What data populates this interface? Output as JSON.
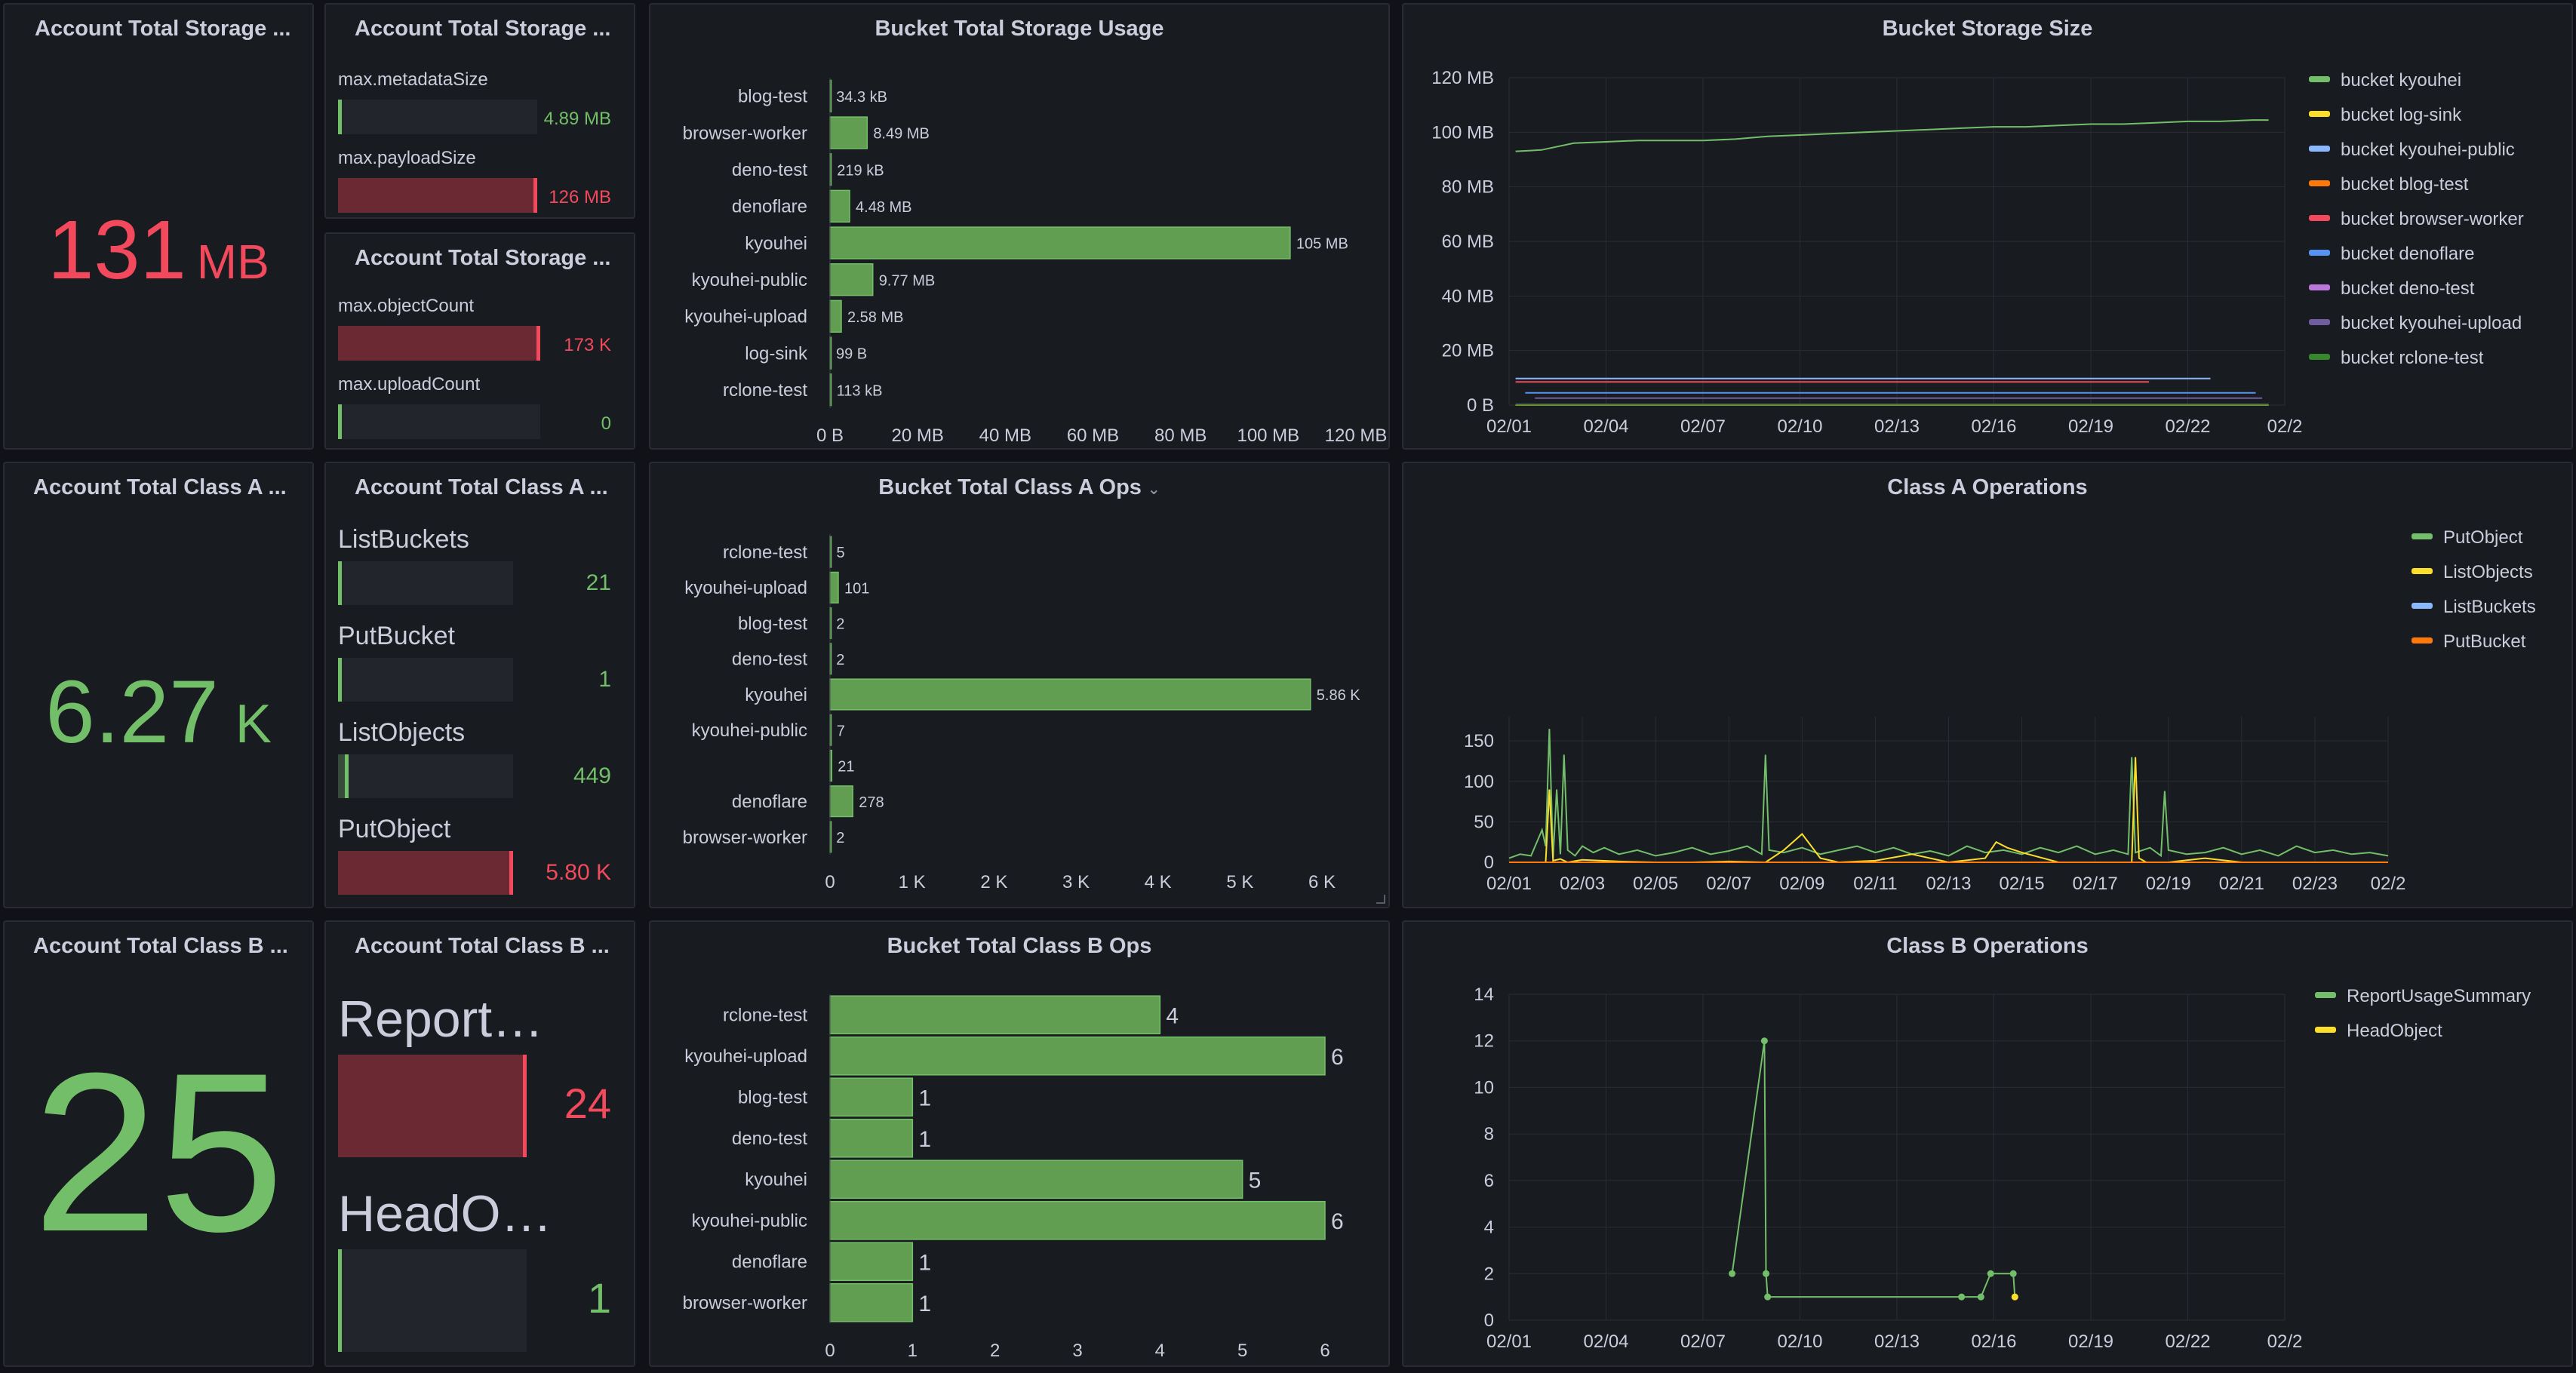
{
  "colors": {
    "green": "#73bf69",
    "red": "#f2495c",
    "bar_green": "#629e51",
    "bar_red": "#6b2a33",
    "bg": "#181b1f",
    "grid": "#2a2c33",
    "text": "#ccccdc"
  },
  "storage": {
    "stat_title": "Account Total Storage ...",
    "stat_value": "131",
    "stat_unit": "MB",
    "gauge1_title": "Account Total Storage ...",
    "gauge1": [
      {
        "label": "max.metadataSize",
        "value": "4.89 MB",
        "color": "green",
        "fraction": 0.0
      },
      {
        "label": "max.payloadSize",
        "value": "126 MB",
        "color": "red",
        "fraction": 1.0
      }
    ],
    "gauge2_title": "Account Total Storage ...",
    "gauge2": [
      {
        "label": "max.objectCount",
        "value": "173 K",
        "color": "red",
        "fraction": 1.0
      },
      {
        "label": "max.uploadCount",
        "value": "0",
        "color": "green",
        "fraction": 0.0
      }
    ]
  },
  "class_a": {
    "stat_title": "Account Total Class A ...",
    "stat_value": "6.27",
    "stat_unit": "K",
    "gauge_title": "Account Total Class A ...",
    "gauge": [
      {
        "label": "ListBuckets",
        "value": "21",
        "color": "green",
        "fraction": 0.0
      },
      {
        "label": "PutBucket",
        "value": "1",
        "color": "green",
        "fraction": 0.0
      },
      {
        "label": "ListObjects",
        "value": "449",
        "color": "green",
        "fraction": 0.06
      },
      {
        "label": "PutObject",
        "value": "5.80 K",
        "color": "red",
        "fraction": 1.0
      }
    ]
  },
  "class_b": {
    "stat_title": "Account Total Class B ...",
    "stat_value": "25",
    "gauge_title": "Account Total Class B ...",
    "gauge": [
      {
        "label": "ReportUs...",
        "value": "24",
        "color": "red",
        "fraction": 1.0
      },
      {
        "label": "HeadObje...",
        "value": "1",
        "color": "green",
        "fraction": 0.0
      }
    ]
  },
  "chart_data": [
    {
      "id": "bucket-storage-usage",
      "type": "bar",
      "orientation": "horizontal",
      "title": "Bucket Total Storage Usage",
      "categories": [
        "blog-test",
        "browser-worker",
        "deno-test",
        "denoflare",
        "kyouhei",
        "kyouhei-public",
        "kyouhei-upload",
        "log-sink",
        "rclone-test"
      ],
      "values": [
        0.0343,
        8.49,
        0.219,
        4.48,
        105,
        9.77,
        2.58,
        9.9e-05,
        0.113
      ],
      "value_labels": [
        "34.3 kB",
        "8.49 MB",
        "219 kB",
        "4.48 MB",
        "105 MB",
        "9.77 MB",
        "2.58 MB",
        "99 B",
        "113 kB"
      ],
      "xlim": [
        0,
        120
      ],
      "x_ticks": [
        0,
        20,
        40,
        60,
        80,
        100,
        120
      ],
      "x_tick_labels": [
        "0 B",
        "20 MB",
        "40 MB",
        "60 MB",
        "80 MB",
        "100 MB",
        "120 MB"
      ]
    },
    {
      "id": "bucket-storage-size",
      "type": "line",
      "title": "Bucket Storage Size",
      "x_tick_labels": [
        "02/01",
        "02/04",
        "02/07",
        "02/10",
        "02/13",
        "02/16",
        "02/19",
        "02/22",
        "02/2"
      ],
      "y_tick_labels": [
        "0 B",
        "20 MB",
        "40 MB",
        "60 MB",
        "80 MB",
        "100 MB",
        "120 MB"
      ],
      "ylim": [
        0,
        120
      ],
      "legend_position": "right",
      "series": [
        {
          "name": "bucket kyouhei",
          "color": "#73bf69",
          "x": [
            0.2,
            1,
            2,
            3,
            4,
            5,
            6,
            7,
            8,
            9,
            10,
            11,
            12,
            13,
            14,
            15,
            16,
            17,
            18,
            19,
            20,
            21,
            22,
            23,
            23.5
          ],
          "values": [
            93,
            93.5,
            96,
            96.5,
            97,
            97,
            97,
            97.5,
            98.5,
            99,
            99.5,
            100,
            100.5,
            101,
            101.5,
            102,
            102,
            102.5,
            103,
            103,
            103.5,
            104,
            104,
            104.5,
            104.5
          ]
        },
        {
          "name": "bucket log-sink",
          "color": "#fade2a",
          "x": [
            0.2,
            23.5
          ],
          "values": [
            0.0001,
            0.0001
          ]
        },
        {
          "name": "bucket kyouhei-public",
          "color": "#8ab8ff",
          "x": [
            0.2,
            21.7
          ],
          "values": [
            9.77,
            9.77
          ]
        },
        {
          "name": "bucket blog-test",
          "color": "#ff780a",
          "x": [
            0.2,
            23.5
          ],
          "values": [
            0.03,
            0.03
          ]
        },
        {
          "name": "bucket browser-worker",
          "color": "#f2495c",
          "x": [
            0.2,
            19.8
          ],
          "values": [
            8.49,
            8.49
          ]
        },
        {
          "name": "bucket denoflare",
          "color": "#5794f2",
          "x": [
            0.5,
            23.1
          ],
          "values": [
            4.48,
            4.48
          ]
        },
        {
          "name": "bucket deno-test",
          "color": "#b877d9",
          "x": [
            0.2,
            23.5
          ],
          "values": [
            0.219,
            0.219
          ]
        },
        {
          "name": "bucket kyouhei-upload",
          "color": "#705da0",
          "x": [
            0.8,
            23.3
          ],
          "values": [
            2.58,
            2.58
          ]
        },
        {
          "name": "bucket rclone-test",
          "color": "#37872d",
          "x": [
            0.2,
            23.5
          ],
          "values": [
            0.113,
            0.113
          ]
        }
      ]
    },
    {
      "id": "bucket-class-a-ops",
      "type": "bar",
      "orientation": "horizontal",
      "title": "Bucket Total Class A Ops",
      "categories": [
        "rclone-test",
        "kyouhei-upload",
        "blog-test",
        "deno-test",
        "kyouhei",
        "kyouhei-public",
        "",
        "denoflare",
        "browser-worker"
      ],
      "values": [
        5,
        101,
        2,
        2,
        5860,
        7,
        21,
        278,
        2
      ],
      "value_labels": [
        "5",
        "101",
        "2",
        "2",
        "5.86 K",
        "7",
        "21",
        "278",
        "2"
      ],
      "xlim": [
        0,
        6000
      ],
      "x_ticks": [
        0,
        1000,
        2000,
        3000,
        4000,
        5000,
        6000
      ],
      "x_tick_labels": [
        "0",
        "1 K",
        "2 K",
        "3 K",
        "4 K",
        "5 K",
        "6 K"
      ]
    },
    {
      "id": "class-a-operations",
      "type": "line",
      "title": "Class A Operations",
      "x_tick_labels": [
        "02/01",
        "02/03",
        "02/05",
        "02/07",
        "02/09",
        "02/11",
        "02/13",
        "02/15",
        "02/17",
        "02/19",
        "02/21",
        "02/23",
        "02/2"
      ],
      "y_tick_labels": [
        "0",
        "50",
        "100",
        "150"
      ],
      "ylim": [
        0,
        180
      ],
      "legend_position": "right",
      "series": [
        {
          "name": "PutObject",
          "color": "#73bf69",
          "x": [
            0,
            0.3,
            0.6,
            0.9,
            1.0,
            1.1,
            1.2,
            1.3,
            1.4,
            1.5,
            1.6,
            1.8,
            2.0,
            2.3,
            2.6,
            3,
            3.5,
            4,
            4.5,
            5,
            5.5,
            6,
            6.5,
            6.9,
            7.0,
            7.1,
            7.5,
            8,
            8.5,
            9,
            9.5,
            10,
            10.5,
            11,
            11.5,
            12,
            12.5,
            13,
            13.5,
            14,
            14.5,
            15,
            15.5,
            16,
            16.5,
            16.9,
            17.0,
            17.1,
            17.5,
            17.8,
            17.9,
            18.0,
            18.5,
            19,
            19.5,
            20,
            20.5,
            21,
            21.5,
            22,
            22.5,
            23,
            23.5,
            24
          ],
          "values": [
            5,
            10,
            8,
            40,
            20,
            165,
            5,
            90,
            10,
            133,
            15,
            8,
            20,
            12,
            18,
            10,
            15,
            8,
            12,
            18,
            10,
            14,
            20,
            10,
            133,
            15,
            12,
            18,
            10,
            15,
            20,
            12,
            18,
            10,
            14,
            8,
            20,
            12,
            15,
            10,
            18,
            12,
            20,
            10,
            15,
            10,
            130,
            12,
            18,
            8,
            88,
            15,
            10,
            12,
            18,
            10,
            15,
            8,
            20,
            12,
            15,
            10,
            12,
            8
          ]
        },
        {
          "name": "ListObjects",
          "color": "#fade2a",
          "x": [
            1.0,
            1.1,
            1.2,
            1.4,
            1.6,
            2,
            3,
            4,
            5,
            6,
            7,
            7.5,
            8,
            8.5,
            9,
            10,
            11,
            12,
            13,
            13.3,
            13.6,
            14,
            15,
            16,
            17,
            17.1,
            17.2,
            17.4,
            17.6,
            18,
            19,
            20,
            21,
            22,
            23,
            24
          ],
          "values": [
            0,
            90,
            2,
            4,
            0,
            3,
            1,
            0,
            0,
            1,
            0,
            15,
            35,
            5,
            0,
            2,
            10,
            0,
            5,
            25,
            18,
            12,
            0,
            0,
            0,
            130,
            5,
            0,
            0,
            0,
            5,
            0,
            0,
            0,
            0,
            0
          ]
        },
        {
          "name": "ListBuckets",
          "color": "#8ab8ff",
          "x": [
            0,
            24
          ],
          "values": [
            0,
            0
          ]
        },
        {
          "name": "PutBucket",
          "color": "#ff780a",
          "x": [
            0,
            24
          ],
          "values": [
            0,
            0
          ]
        }
      ]
    },
    {
      "id": "bucket-class-b-ops",
      "type": "bar",
      "orientation": "horizontal",
      "title": "Bucket Total Class B Ops",
      "categories": [
        "rclone-test",
        "kyouhei-upload",
        "blog-test",
        "deno-test",
        "kyouhei",
        "kyouhei-public",
        "denoflare",
        "browser-worker"
      ],
      "values": [
        4,
        6,
        1,
        1,
        5,
        6,
        1,
        1
      ],
      "value_labels": [
        "4",
        "6",
        "1",
        "1",
        "5",
        "6",
        "1",
        "1"
      ],
      "xlim": [
        0,
        6
      ],
      "x_ticks": [
        0,
        1,
        2,
        3,
        4,
        5,
        6
      ],
      "x_tick_labels": [
        "0",
        "1",
        "2",
        "3",
        "4",
        "5",
        "6"
      ]
    },
    {
      "id": "class-b-operations",
      "type": "line",
      "title": "Class B Operations",
      "x_tick_labels": [
        "02/01",
        "02/04",
        "02/07",
        "02/10",
        "02/13",
        "02/16",
        "02/19",
        "02/22",
        "02/2"
      ],
      "y_tick_labels": [
        "0",
        "2",
        "4",
        "6",
        "8",
        "10",
        "12",
        "14"
      ],
      "ylim": [
        0,
        14
      ],
      "legend_position": "right",
      "series": [
        {
          "name": "ReportUsageSummary",
          "color": "#73bf69",
          "x": [
            6.9,
            7.9,
            7.95,
            8.0,
            14.0,
            14.6,
            14.9,
            15.6,
            15.65
          ],
          "values": [
            2,
            12,
            2,
            1,
            1,
            1,
            2,
            2,
            1
          ],
          "markers": true
        },
        {
          "name": "HeadObject",
          "color": "#fade2a",
          "x": [
            15.65
          ],
          "values": [
            1
          ],
          "markers": true
        }
      ]
    }
  ]
}
